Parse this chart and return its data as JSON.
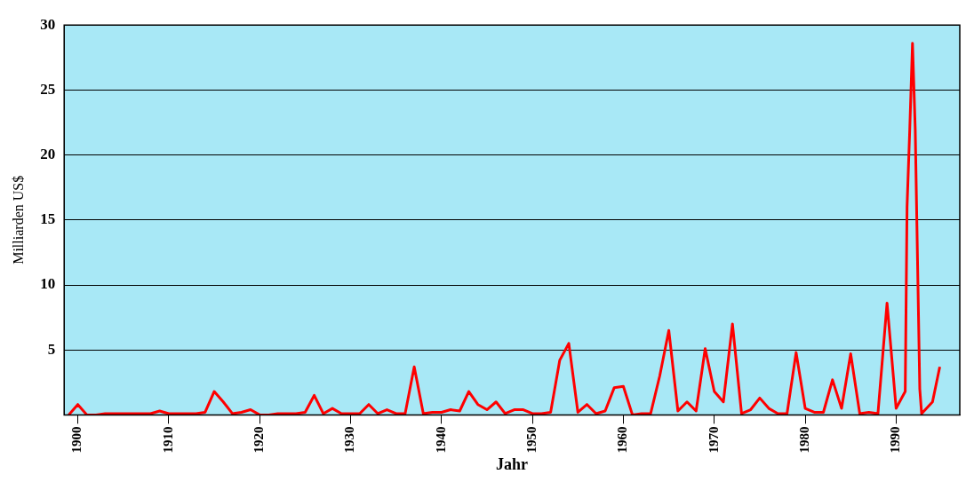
{
  "chart_data": {
    "type": "line",
    "xlabel": "Jahr",
    "ylabel": "Milliarden US$",
    "x": [
      1899,
      1900,
      1901,
      1902,
      1903,
      1904,
      1905,
      1906,
      1907,
      1908,
      1909,
      1910,
      1911,
      1912,
      1913,
      1914,
      1915,
      1916,
      1917,
      1918,
      1919,
      1920,
      1921,
      1922,
      1923,
      1924,
      1925,
      1926,
      1927,
      1928,
      1929,
      1930,
      1931,
      1932,
      1933,
      1934,
      1935,
      1936,
      1937,
      1938,
      1939,
      1940,
      1941,
      1942,
      1943,
      1944,
      1945,
      1946,
      1947,
      1948,
      1949,
      1950,
      1951,
      1952,
      1953,
      1954,
      1955,
      1956,
      1957,
      1958,
      1959,
      1960,
      1961,
      1962,
      1963,
      1964,
      1965,
      1966,
      1967,
      1968,
      1969,
      1970,
      1971,
      1972,
      1973,
      1974,
      1975,
      1976,
      1977,
      1978,
      1979,
      1980,
      1981,
      1982,
      1983,
      1984,
      1985,
      1986,
      1987,
      1988,
      1989,
      1990,
      1991,
      1991.2,
      1991.5,
      1991.8,
      1992.1,
      1992.4,
      1992.6,
      1992.8,
      1994,
      1994.8
    ],
    "series": [
      {
        "color": "#ff0000",
        "values": [
          0,
          0.8,
          0,
          0,
          0.1,
          0.1,
          0.1,
          0.1,
          0.1,
          0.1,
          0.3,
          0.1,
          0.1,
          0.1,
          0.1,
          0.2,
          1.8,
          1,
          0.1,
          0.2,
          0.4,
          0,
          0,
          0.1,
          0.1,
          0.1,
          0.2,
          1.5,
          0.1,
          0.5,
          0.1,
          0.1,
          0.1,
          0.8,
          0.1,
          0.4,
          0.1,
          0.1,
          3.7,
          0.1,
          0.2,
          0.2,
          0.4,
          0.3,
          1.8,
          0.8,
          0.4,
          1,
          0.1,
          0.4,
          0.4,
          0.1,
          0.1,
          0.2,
          4.2,
          5.5,
          0.2,
          0.8,
          0.1,
          0.3,
          2.1,
          2.2,
          0,
          0.1,
          0.1,
          3,
          6.5,
          0.3,
          1,
          0.3,
          5.1,
          1.8,
          1,
          7,
          0.1,
          0.4,
          1.3,
          0.5,
          0.1,
          0.1,
          4.8,
          0.5,
          0.2,
          0.2,
          2.7,
          0.5,
          4.7,
          0.1,
          0.2,
          0.1,
          8.6,
          0.5,
          1.8,
          16,
          22,
          28.6,
          22,
          10,
          2,
          0.1,
          1,
          3.7
        ]
      }
    ],
    "xlim": [
      1898.5,
      1997
    ],
    "xticks": [
      1900,
      1910,
      1920,
      1930,
      1940,
      1950,
      1960,
      1970,
      1980,
      1990
    ],
    "ylim": [
      0,
      30
    ],
    "yticks": [
      5,
      10,
      15,
      20,
      25,
      30
    ],
    "grid": "y",
    "legend": false,
    "marker": "none",
    "line_style": "solid"
  }
}
